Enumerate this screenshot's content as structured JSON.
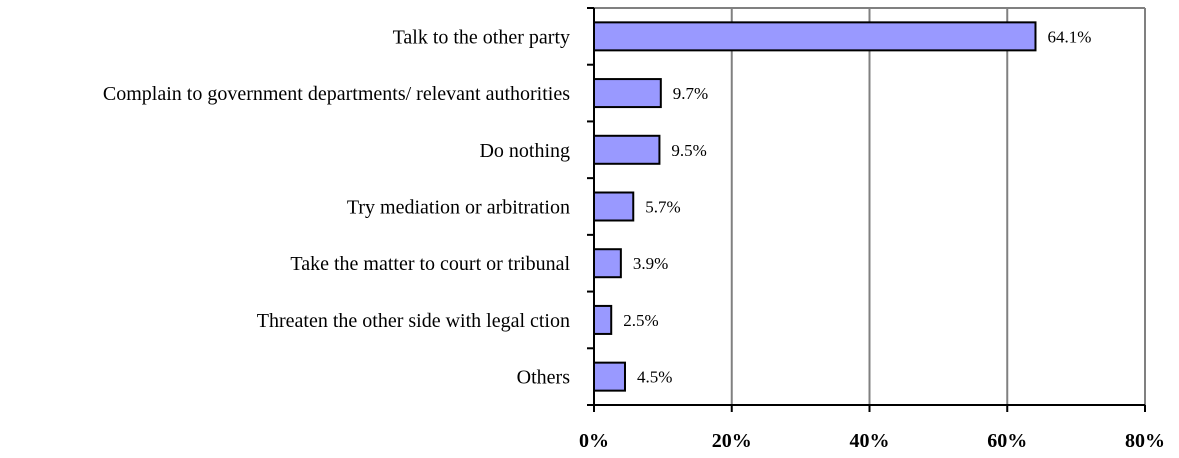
{
  "chart_data": {
    "type": "bar",
    "orientation": "horizontal",
    "title": "",
    "xlabel": "",
    "ylabel": "",
    "categories": [
      "Talk to the other party",
      "Complain to government departments/ relevant authorities",
      "Do nothing",
      "Try mediation or arbitration",
      "Take the matter to court or tribunal",
      "Threaten the other side with legal ction",
      "Others"
    ],
    "values": [
      64.1,
      9.7,
      9.5,
      5.7,
      3.9,
      2.5,
      4.5
    ],
    "data_labels": [
      "64.1%",
      "9.7%",
      "9.5%",
      "5.7%",
      "3.9%",
      "2.5%",
      "4.5%"
    ],
    "xlim": [
      0,
      80
    ],
    "x_ticks": [
      0,
      20,
      40,
      60,
      80
    ],
    "x_tick_labels": [
      "0%",
      "20%",
      "40%",
      "60%",
      "80%"
    ],
    "grid": "vertical",
    "legend": "none",
    "colors": {
      "bar_fill": "#9999ff",
      "bar_stroke": "#000000",
      "gridline": "#808080",
      "axis": "#000000"
    }
  }
}
